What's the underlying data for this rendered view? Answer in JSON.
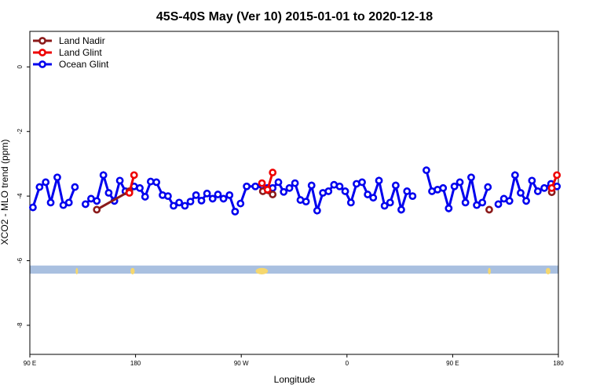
{
  "chart_data": {
    "type": "line",
    "title": "45S-40S May (Ver 10)   2015-01-01 to 2020-12-18",
    "xlabel": "Longitude",
    "ylabel": "XCO2 - MLO trend (ppm)",
    "xlim": [
      90,
      450
    ],
    "ylim": [
      -8.9,
      1.1
    ],
    "x_ticks": [
      90,
      162,
      234,
      306,
      378,
      450
    ],
    "x_tick_labels": [
      "90 E",
      "180",
      "90 W",
      "0",
      "90 E",
      "180"
    ],
    "y_ticks": [
      -8,
      -6,
      -4,
      -2,
      0
    ],
    "y_tick_labels": [
      "-8",
      "-6",
      "-4",
      "-2",
      "0"
    ],
    "grid": false,
    "legend_position": "top-left",
    "land_band": {
      "y_range": [
        -6.15,
        -6.4
      ],
      "ocean_color": "#a9c0e0",
      "land_color": "#f5d76e"
    },
    "series": [
      {
        "name": "Land Nadir",
        "color": "#8b1a1a",
        "segments": [
          [
            [
              135.6,
              -4.42
            ],
            [
              157.8,
              -3.85
            ]
          ],
          [
            [
              248.7,
              -3.85
            ],
            [
              255.4,
              -3.95
            ]
          ],
          [
            [
              402.9,
              -4.42
            ]
          ],
          [
            [
              445.5,
              -3.88
            ]
          ]
        ]
      },
      {
        "name": "Land Glint",
        "color": "#ee0000",
        "segments": [
          [
            [
              157.8,
              -3.9
            ],
            [
              161.0,
              -3.35
            ]
          ],
          [
            [
              248.1,
              -3.6
            ],
            [
              251.9,
              -3.8
            ],
            [
              255.4,
              -3.27
            ]
          ],
          [
            [
              445.5,
              -3.75
            ],
            [
              449.0,
              -3.35
            ]
          ]
        ]
      },
      {
        "name": "Ocean Glint",
        "color": "#0000ee",
        "segments": [
          [
            [
              92.1,
              -4.35
            ],
            [
              96.6,
              -3.72
            ],
            [
              100.8,
              -3.57
            ],
            [
              104.2,
              -4.2
            ],
            [
              108.7,
              -3.42
            ],
            [
              112.8,
              -4.28
            ],
            [
              116.6,
              -4.2
            ],
            [
              120.7,
              -3.72
            ]
          ],
          [
            [
              127.9,
              -4.25
            ],
            [
              131.7,
              -4.08
            ],
            [
              135.6,
              -4.15
            ],
            [
              140.1,
              -3.35
            ],
            [
              143.7,
              -3.9
            ],
            [
              147.6,
              -4.15
            ],
            [
              151.3,
              -3.52
            ],
            [
              155.1,
              -3.85
            ],
            [
              161.0,
              -3.7
            ],
            [
              164.9,
              -3.75
            ],
            [
              168.5,
              -4.02
            ],
            [
              172.3,
              -3.55
            ],
            [
              176.2,
              -3.57
            ],
            [
              180.4,
              -3.97
            ],
            [
              184.1,
              -4.0
            ],
            [
              187.9,
              -4.3
            ],
            [
              191.7,
              -4.2
            ],
            [
              195.6,
              -4.3
            ],
            [
              199.4,
              -4.17
            ],
            [
              203.2,
              -3.97
            ],
            [
              206.9,
              -4.14
            ],
            [
              210.7,
              -3.92
            ],
            [
              214.5,
              -4.08
            ],
            [
              218.1,
              -3.95
            ],
            [
              221.9,
              -4.08
            ],
            [
              226.0,
              -3.97
            ],
            [
              229.8,
              -4.48
            ]
          ],
          [
            [
              233.5,
              -4.23
            ],
            [
              237.7,
              -3.7
            ],
            [
              243.6,
              -3.7
            ],
            [
              248.1,
              -3.67
            ],
            [
              251.9,
              -3.75
            ],
            [
              255.4,
              -3.75
            ],
            [
              259.3,
              -3.57
            ],
            [
              262.9,
              -3.87
            ],
            [
              266.8,
              -3.75
            ],
            [
              270.6,
              -3.6
            ],
            [
              274.3,
              -4.12
            ],
            [
              278.1,
              -4.17
            ],
            [
              281.9,
              -3.67
            ],
            [
              285.7,
              -4.45
            ],
            [
              289.6,
              -3.9
            ],
            [
              293.4,
              -3.85
            ],
            [
              297.2,
              -3.65
            ],
            [
              301.0,
              -3.7
            ],
            [
              304.8,
              -3.85
            ],
            [
              308.7,
              -4.2
            ],
            [
              312.5,
              -3.62
            ],
            [
              316.3,
              -3.57
            ],
            [
              320.1,
              -3.95
            ],
            [
              323.9,
              -4.05
            ],
            [
              327.8,
              -3.52
            ],
            [
              331.6,
              -4.3
            ],
            [
              335.4,
              -4.2
            ],
            [
              339.2,
              -3.67
            ],
            [
              343.0,
              -4.42
            ],
            [
              346.9,
              -3.85
            ],
            [
              350.7,
              -4.0
            ]
          ],
          [
            [
              360.1,
              -3.2
            ],
            [
              363.9,
              -3.85
            ],
            [
              367.7,
              -3.8
            ],
            [
              371.5,
              -3.75
            ],
            [
              375.3,
              -4.38
            ],
            [
              379.2,
              -3.7
            ],
            [
              382.9,
              -3.57
            ],
            [
              386.7,
              -4.2
            ],
            [
              390.6,
              -3.42
            ],
            [
              394.4,
              -4.28
            ],
            [
              398.2,
              -4.2
            ],
            [
              402.0,
              -3.72
            ]
          ],
          [
            [
              409.1,
              -4.25
            ],
            [
              412.9,
              -4.08
            ],
            [
              416.7,
              -4.15
            ],
            [
              420.5,
              -3.35
            ],
            [
              424.3,
              -3.9
            ],
            [
              428.1,
              -4.15
            ],
            [
              432.0,
              -3.52
            ],
            [
              436.0,
              -3.85
            ],
            [
              440.4,
              -3.75
            ],
            [
              445.0,
              -3.62
            ],
            [
              449.0,
              -3.7
            ]
          ]
        ]
      }
    ]
  }
}
